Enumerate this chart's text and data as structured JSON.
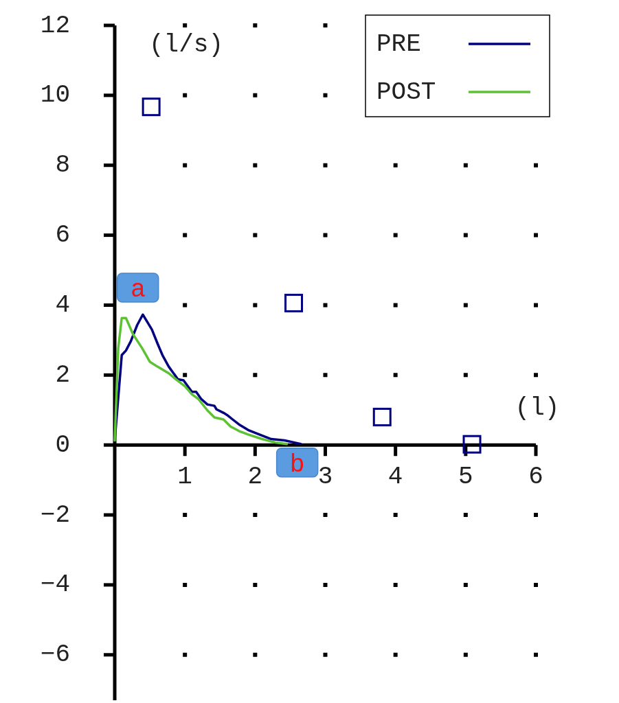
{
  "chart_data": {
    "type": "line",
    "xlabel": "(l)",
    "ylabel": "(l/s)",
    "xlim": [
      0,
      6
    ],
    "ylim": [
      -7.3,
      12
    ],
    "xticks": [
      1,
      2,
      3,
      4,
      5,
      6
    ],
    "yticks": [
      -6,
      -4,
      -2,
      0,
      2,
      4,
      6,
      8,
      10,
      12
    ],
    "grid": true,
    "legend": "top right",
    "line_style": "solid",
    "annotations": [
      "a",
      "b"
    ],
    "series": [
      {
        "name": "PRE",
        "color": "#000080",
        "x": [
          0,
          0.1,
          0.16,
          0.23,
          0.32,
          0.4,
          0.53,
          0.61,
          0.68,
          0.77,
          0.9,
          0.98,
          1.1,
          1.16,
          1.23,
          1.32,
          1.42,
          1.45,
          1.55,
          1.6,
          1.68,
          1.77,
          1.9,
          2.06,
          2.23,
          2.42,
          2.65
        ],
        "values": [
          0.13,
          2.57,
          2.7,
          2.97,
          3.43,
          3.73,
          3.3,
          2.9,
          2.57,
          2.24,
          1.88,
          1.85,
          1.52,
          1.52,
          1.32,
          1.16,
          1.12,
          1.02,
          0.92,
          0.86,
          0.73,
          0.59,
          0.43,
          0.3,
          0.17,
          0.13,
          0.03
        ]
      },
      {
        "name": "POST",
        "color": "#5cc234",
        "x": [
          0,
          0.05,
          0.1,
          0.16,
          0.26,
          0.39,
          0.5,
          0.61,
          0.77,
          0.87,
          1.0,
          1.1,
          1.19,
          1.32,
          1.42,
          1.55,
          1.65,
          1.77,
          1.9,
          2.1,
          2.29,
          2.45
        ],
        "values": [
          0.13,
          2.77,
          3.63,
          3.63,
          3.17,
          2.77,
          2.38,
          2.24,
          2.05,
          1.88,
          1.68,
          1.45,
          1.32,
          0.99,
          0.79,
          0.73,
          0.53,
          0.4,
          0.3,
          0.17,
          0.07,
          0.03
        ]
      },
      {
        "type": "scatter",
        "marker": "square",
        "color": "#000080",
        "x": [
          0.52,
          2.55,
          3.81,
          5.09
        ],
        "values": [
          9.67,
          4.06,
          0.8,
          0.02
        ]
      }
    ]
  }
}
